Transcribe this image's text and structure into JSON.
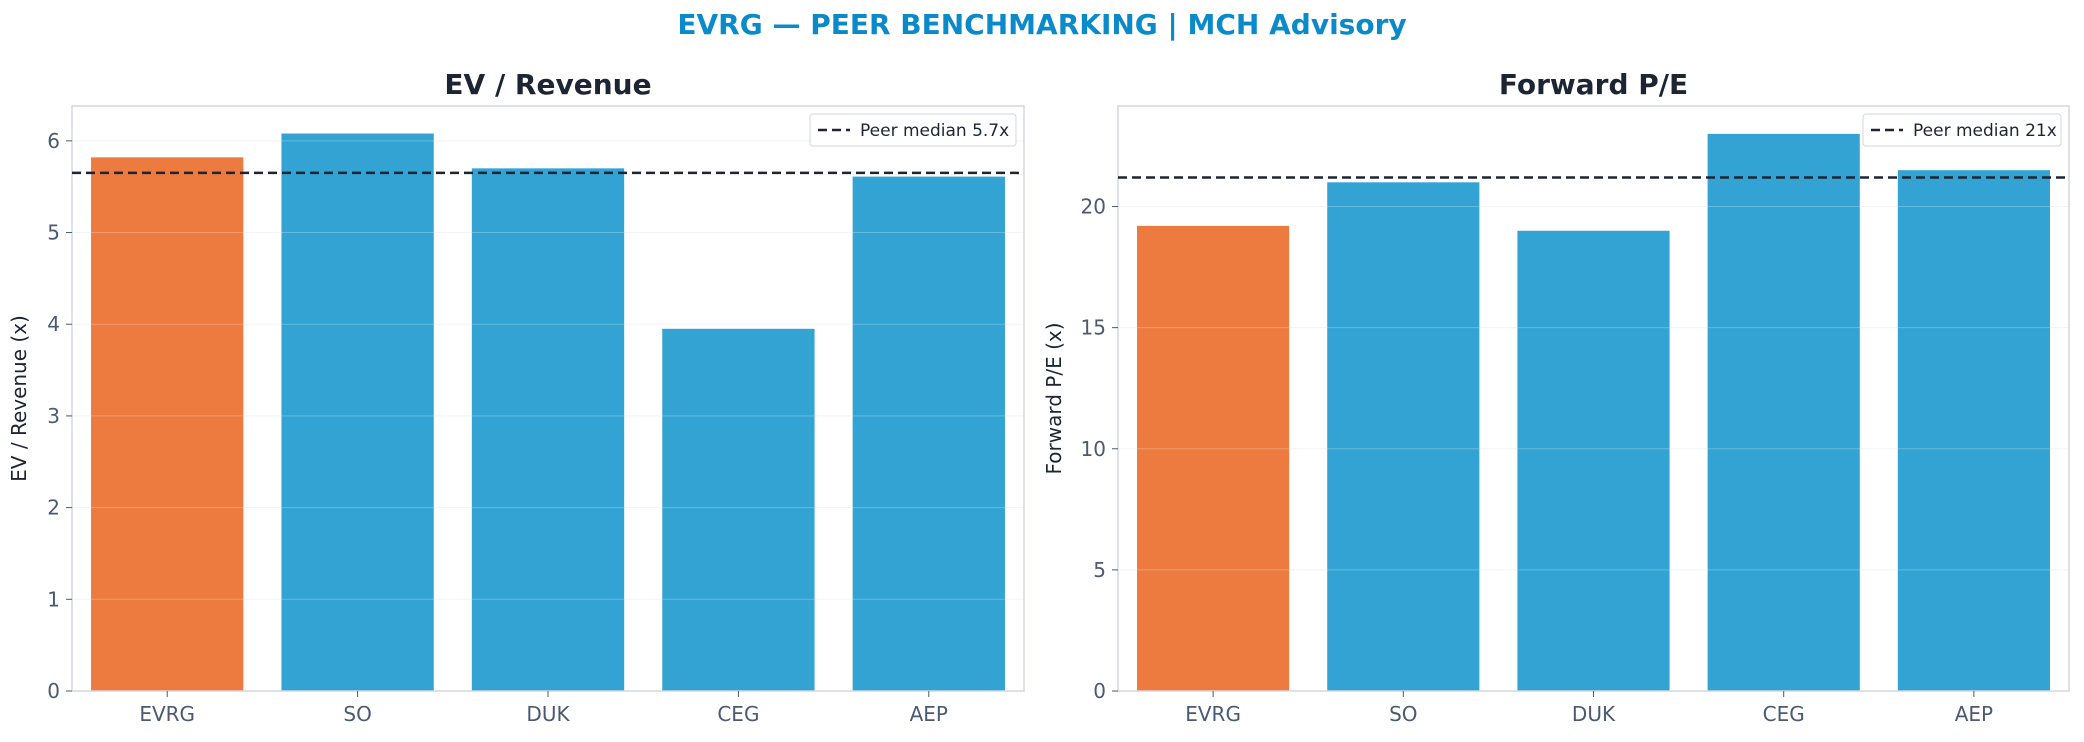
{
  "suptitle": "EVRG — PEER BENCHMARKING | MCH Advisory",
  "colors": {
    "highlight": "#ed7a3f",
    "peer": "#33a3d4",
    "median": "#1d2535",
    "title": "#0a8ac9"
  },
  "chart_data": [
    {
      "type": "bar",
      "title": "EV / Revenue",
      "ylabel": "EV / Revenue (x)",
      "categories": [
        "EVRG",
        "SO",
        "DUK",
        "CEG",
        "AEP"
      ],
      "values": [
        5.82,
        6.08,
        5.7,
        3.95,
        5.61
      ],
      "highlight": "EVRG",
      "ylim": [
        0,
        6.38
      ],
      "yticks": [
        0,
        1,
        2,
        3,
        4,
        5,
        6
      ],
      "median": 5.65,
      "legend_label": "Peer median 5.7x",
      "legend": "top-right",
      "grid": true
    },
    {
      "type": "bar",
      "title": "Forward P/E",
      "ylabel": "Forward P/E (x)",
      "categories": [
        "EVRG",
        "SO",
        "DUK",
        "CEG",
        "AEP"
      ],
      "values": [
        19.2,
        21.0,
        19.0,
        23.0,
        21.5
      ],
      "highlight": "EVRG",
      "ylim": [
        0,
        24.15
      ],
      "yticks": [
        0,
        5,
        10,
        15,
        20
      ],
      "median": 21.2,
      "legend_label": "Peer median 21x",
      "legend": "top-right",
      "grid": true
    }
  ]
}
